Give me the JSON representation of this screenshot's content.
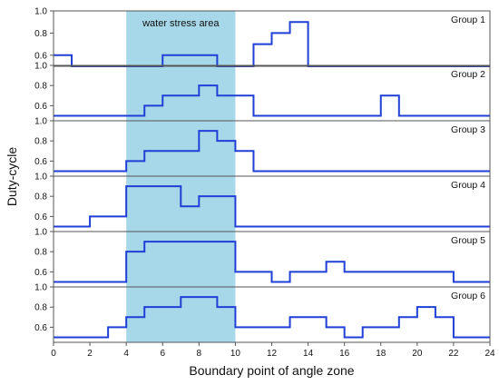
{
  "chart_data": {
    "type": "line",
    "step": true,
    "band": {
      "x_start": 4,
      "x_end": 10,
      "label": "water stress area",
      "color": "#a7d8ea"
    },
    "xlabel": "Boundary point of angle zone",
    "ylabel": "Duty-cycle",
    "xlim": [
      0,
      24
    ],
    "xticks": [
      0,
      2,
      4,
      6,
      8,
      10,
      12,
      14,
      16,
      18,
      20,
      22,
      24
    ],
    "line_color": "#1f3fd6",
    "panels": [
      {
        "label": "Group 1",
        "ylim": [
          0.5,
          1.0
        ],
        "yticks": [
          0.6,
          0.8,
          1.0
        ],
        "steps": [
          [
            0,
            0.6
          ],
          [
            1,
            0.5
          ],
          [
            6,
            0.6
          ],
          [
            9,
            0.5
          ],
          [
            11,
            0.7
          ],
          [
            12,
            0.8
          ],
          [
            13,
            0.9
          ],
          [
            14,
            0.5
          ],
          [
            24,
            0.5
          ]
        ]
      },
      {
        "label": "Group 2",
        "ylim": [
          0.45,
          1.0
        ],
        "yticks": [
          0.6,
          0.8,
          1.0
        ],
        "steps": [
          [
            0,
            0.5
          ],
          [
            5,
            0.6
          ],
          [
            6,
            0.7
          ],
          [
            8,
            0.8
          ],
          [
            9,
            0.7
          ],
          [
            11,
            0.5
          ],
          [
            18,
            0.7
          ],
          [
            19,
            0.5
          ],
          [
            24,
            0.5
          ]
        ]
      },
      {
        "label": "Group 3",
        "ylim": [
          0.45,
          1.0
        ],
        "yticks": [
          0.6,
          0.8,
          1.0
        ],
        "steps": [
          [
            0,
            0.5
          ],
          [
            4,
            0.6
          ],
          [
            5,
            0.7
          ],
          [
            8,
            0.9
          ],
          [
            9,
            0.8
          ],
          [
            10,
            0.7
          ],
          [
            11,
            0.5
          ],
          [
            24,
            0.5
          ]
        ]
      },
      {
        "label": "Group 4",
        "ylim": [
          0.45,
          1.0
        ],
        "yticks": [
          0.6,
          0.8,
          1.0
        ],
        "steps": [
          [
            0,
            0.5
          ],
          [
            2,
            0.6
          ],
          [
            4,
            0.9
          ],
          [
            7,
            0.7
          ],
          [
            8,
            0.8
          ],
          [
            10,
            0.5
          ],
          [
            24,
            0.5
          ]
        ]
      },
      {
        "label": "Group 5",
        "ylim": [
          0.45,
          1.0
        ],
        "yticks": [
          0.6,
          0.8,
          1.0
        ],
        "steps": [
          [
            0,
            0.5
          ],
          [
            4,
            0.8
          ],
          [
            5,
            0.9
          ],
          [
            10,
            0.6
          ],
          [
            12,
            0.5
          ],
          [
            13,
            0.6
          ],
          [
            15,
            0.7
          ],
          [
            16,
            0.6
          ],
          [
            22,
            0.5
          ],
          [
            24,
            0.5
          ]
        ]
      },
      {
        "label": "Group 6",
        "ylim": [
          0.45,
          1.0
        ],
        "yticks": [
          0.6,
          0.8,
          1.0
        ],
        "steps": [
          [
            0,
            0.5
          ],
          [
            3,
            0.6
          ],
          [
            4,
            0.7
          ],
          [
            5,
            0.8
          ],
          [
            7,
            0.9
          ],
          [
            9,
            0.8
          ],
          [
            10,
            0.6
          ],
          [
            13,
            0.7
          ],
          [
            15,
            0.6
          ],
          [
            16,
            0.5
          ],
          [
            17,
            0.6
          ],
          [
            19,
            0.7
          ],
          [
            20,
            0.8
          ],
          [
            21,
            0.7
          ],
          [
            22,
            0.5
          ],
          [
            24,
            0.5
          ]
        ]
      }
    ]
  }
}
